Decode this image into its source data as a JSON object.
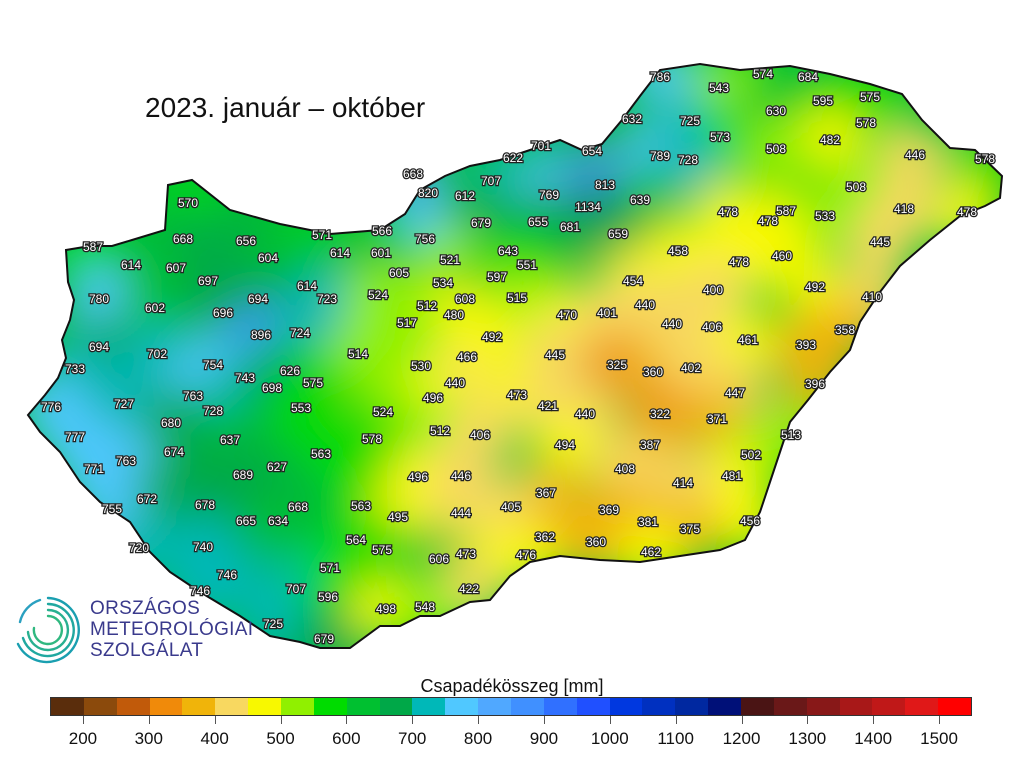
{
  "title": "2023. január – október",
  "logo": {
    "lines": [
      "ORSZÁGOS",
      "METEOROLÓGIAI",
      "SZOLGÁLAT"
    ]
  },
  "legend": {
    "title": "Csapadékösszeg [mm]",
    "range": [
      150,
      1550
    ],
    "step": 50,
    "ticks": [
      200,
      300,
      400,
      500,
      600,
      700,
      800,
      900,
      1000,
      1100,
      1200,
      1300,
      1400,
      1500
    ],
    "colors": [
      "#5a2d0c",
      "#8b4a0c",
      "#c15a0a",
      "#f08a0a",
      "#f0b40a",
      "#f8d860",
      "#f8f800",
      "#90f000",
      "#00dc00",
      "#00c030",
      "#00a848",
      "#00b8b8",
      "#50c8ff",
      "#50a8ff",
      "#4090ff",
      "#3070ff",
      "#2050ff",
      "#0038e0",
      "#0030c0",
      "#0028a0",
      "#001078",
      "#4a1414",
      "#6a1818",
      "#881818",
      "#a81818",
      "#c01818",
      "#e01818",
      "#ff0000"
    ]
  },
  "stations": [
    786,
    574,
    684,
    543,
    575,
    632,
    725,
    630,
    595,
    573,
    578,
    482,
    701,
    654,
    508,
    622,
    789,
    728,
    446,
    578,
    668,
    707,
    813,
    820,
    612,
    769,
    639,
    1134,
    508,
    570,
    587,
    478,
    418,
    478,
    533,
    679,
    655,
    681,
    659,
    478,
    668,
    587,
    656,
    571,
    566,
    756,
    614,
    601,
    604,
    614,
    607,
    643,
    521,
    458,
    460,
    445,
    478,
    697,
    605,
    551,
    597,
    534,
    454,
    614,
    723,
    524,
    512,
    608,
    480,
    515,
    400,
    492,
    410,
    780,
    602,
    694,
    440,
    470,
    401,
    517,
    696,
    440,
    406,
    461,
    358,
    492,
    896,
    724,
    694,
    702,
    514,
    393,
    530,
    466,
    445,
    325,
    360,
    402,
    754,
    733,
    743,
    626,
    575,
    698,
    440,
    396,
    763,
    496,
    473,
    447,
    776,
    727,
    728,
    553,
    524,
    421,
    440,
    322,
    371,
    680,
    512,
    406,
    637,
    578,
    513,
    777,
    674,
    563,
    494,
    387,
    763,
    627,
    502,
    771,
    689,
    408,
    481,
    496,
    446,
    414,
    672,
    678,
    367,
    755,
    668,
    563,
    405,
    369,
    444,
    495,
    381,
    375,
    665,
    634,
    456,
    362,
    564,
    720,
    740,
    575,
    473,
    360,
    462,
    606,
    476,
    571,
    746,
    707,
    422,
    596,
    746,
    498,
    548,
    725,
    679
  ]
}
